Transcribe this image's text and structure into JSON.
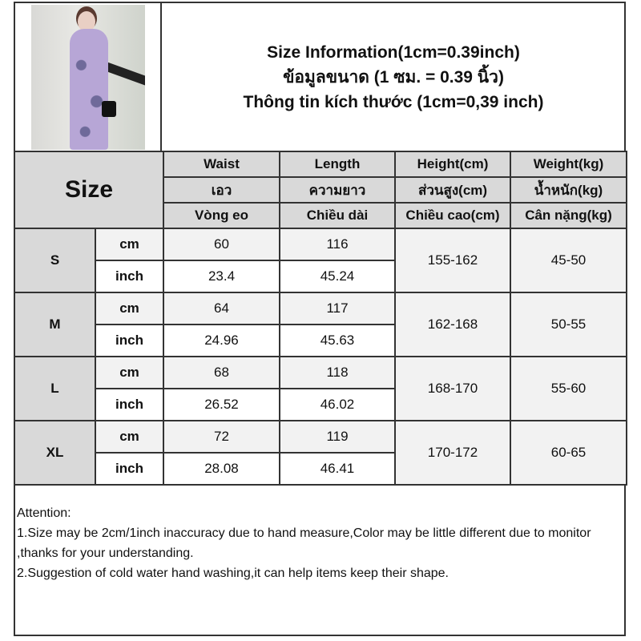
{
  "header": {
    "title_lines": [
      "Size Information(1cm=0.39inch)",
      "ข้อมูลขนาด (1 ซม. = 0.39 นิ้ว)",
      "Thông tin kích thước (1cm=0,39 inch)"
    ]
  },
  "table": {
    "size_label": "Size",
    "columns": [
      {
        "en": "Waist",
        "th": "เอว",
        "vi": "Vòng eo"
      },
      {
        "en": "Length",
        "th": "ความยาว",
        "vi": "Chiều dài"
      },
      {
        "en": "Height(cm)",
        "th": "ส่วนสูง(cm)",
        "vi": "Chiều cao(cm)"
      },
      {
        "en": "Weight(kg)",
        "th": "น้ำหนัก(kg)",
        "vi": "Cân nặng(kg)"
      }
    ],
    "units": {
      "cm": "cm",
      "inch": "inch"
    },
    "rows": [
      {
        "size": "S",
        "cm": {
          "waist": "60",
          "length": "116"
        },
        "inch": {
          "waist": "23.4",
          "length": "45.24"
        },
        "height": "155-162",
        "weight": "45-50"
      },
      {
        "size": "M",
        "cm": {
          "waist": "64",
          "length": "117"
        },
        "inch": {
          "waist": "24.96",
          "length": "45.63"
        },
        "height": "162-168",
        "weight": "50-55"
      },
      {
        "size": "L",
        "cm": {
          "waist": "68",
          "length": "118"
        },
        "inch": {
          "waist": "26.52",
          "length": "46.02"
        },
        "height": "168-170",
        "weight": "55-60"
      },
      {
        "size": "XL",
        "cm": {
          "waist": "72",
          "length": "119"
        },
        "inch": {
          "waist": "28.08",
          "length": "46.41"
        },
        "height": "170-172",
        "weight": "60-65"
      }
    ]
  },
  "notes": {
    "heading": "Attention:",
    "items": [
      "1.Size may be 2cm/1inch inaccuracy due to hand measure,Color may be little different due to monitor ,thanks for your understanding.",
      "2.Suggestion of cold water hand washing,it can help items keep their shape."
    ]
  },
  "colors": {
    "header_bg": "#d9d9d9",
    "cm_row_bg": "#f2f2f2",
    "border": "#333333"
  }
}
